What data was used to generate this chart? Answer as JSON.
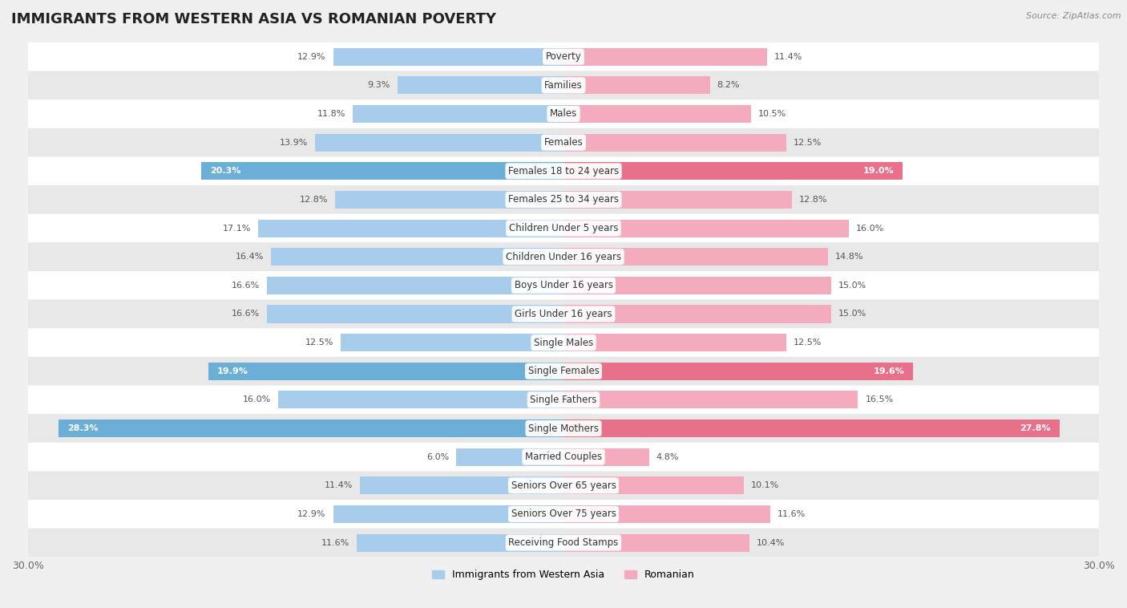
{
  "title": "IMMIGRANTS FROM WESTERN ASIA VS ROMANIAN POVERTY",
  "source": "Source: ZipAtlas.com",
  "categories": [
    "Poverty",
    "Families",
    "Males",
    "Females",
    "Females 18 to 24 years",
    "Females 25 to 34 years",
    "Children Under 5 years",
    "Children Under 16 years",
    "Boys Under 16 years",
    "Girls Under 16 years",
    "Single Males",
    "Single Females",
    "Single Fathers",
    "Single Mothers",
    "Married Couples",
    "Seniors Over 65 years",
    "Seniors Over 75 years",
    "Receiving Food Stamps"
  ],
  "left_values": [
    12.9,
    9.3,
    11.8,
    13.9,
    20.3,
    12.8,
    17.1,
    16.4,
    16.6,
    16.6,
    12.5,
    19.9,
    16.0,
    28.3,
    6.0,
    11.4,
    12.9,
    11.6
  ],
  "right_values": [
    11.4,
    8.2,
    10.5,
    12.5,
    19.0,
    12.8,
    16.0,
    14.8,
    15.0,
    15.0,
    12.5,
    19.6,
    16.5,
    27.8,
    4.8,
    10.1,
    11.6,
    10.4
  ],
  "left_color": "#A8CCEC",
  "right_color": "#F4ABBE",
  "left_label": "Immigrants from Western Asia",
  "right_label": "Romanian",
  "xlim": 30.0,
  "background_color": "#f0f0f0",
  "row_bg_white": "#ffffff",
  "row_bg_gray": "#e8e8e8",
  "title_fontsize": 13,
  "label_fontsize": 8.5,
  "value_fontsize": 8,
  "highlight_rows": [
    4,
    11,
    13
  ],
  "highlight_left_color": "#6BAED6",
  "highlight_right_color": "#E8708A"
}
